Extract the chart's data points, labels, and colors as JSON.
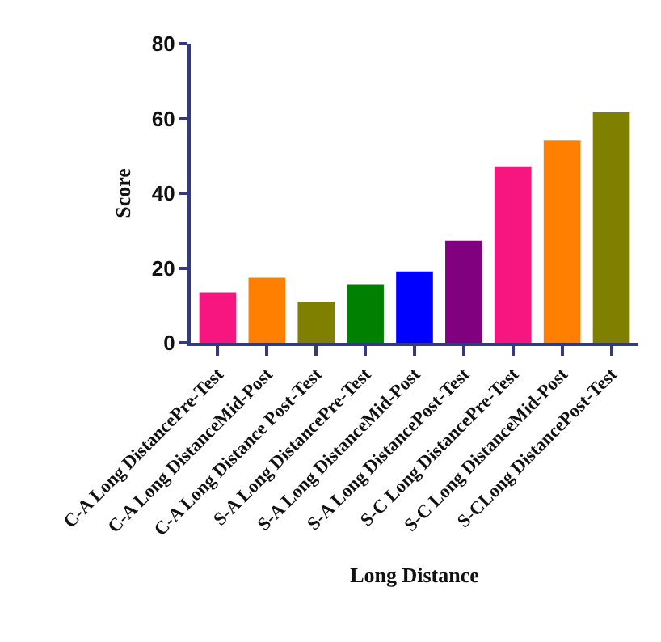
{
  "chart_data": {
    "type": "bar",
    "xlabel": "Long Distance",
    "ylabel": "Score",
    "categories": [
      "C-A Long DistancePre-Test",
      "C-A Long DistanceMid-Post",
      "C-A Long Distance Post-Test",
      "S-A Long DistancePre-Test",
      "S-A Long DistanceMid-Post",
      "S-A Long DistancePost-Test",
      "S-C Long DistancePre-Test",
      "S-C Long DistanceMid-Post",
      "S-CLong DistancePost-Test"
    ],
    "values": [
      13.5,
      17.4,
      10.9,
      15.7,
      19.1,
      27.3,
      47.2,
      54.2,
      61.6
    ],
    "colors": [
      "#f7157f",
      "#ff8000",
      "#808000",
      "#008000",
      "#0000ff",
      "#800080",
      "#f7157f",
      "#ff8000",
      "#808000"
    ],
    "ylim": [
      0,
      80
    ],
    "yticks": [
      0,
      20,
      40,
      60,
      80
    ]
  }
}
